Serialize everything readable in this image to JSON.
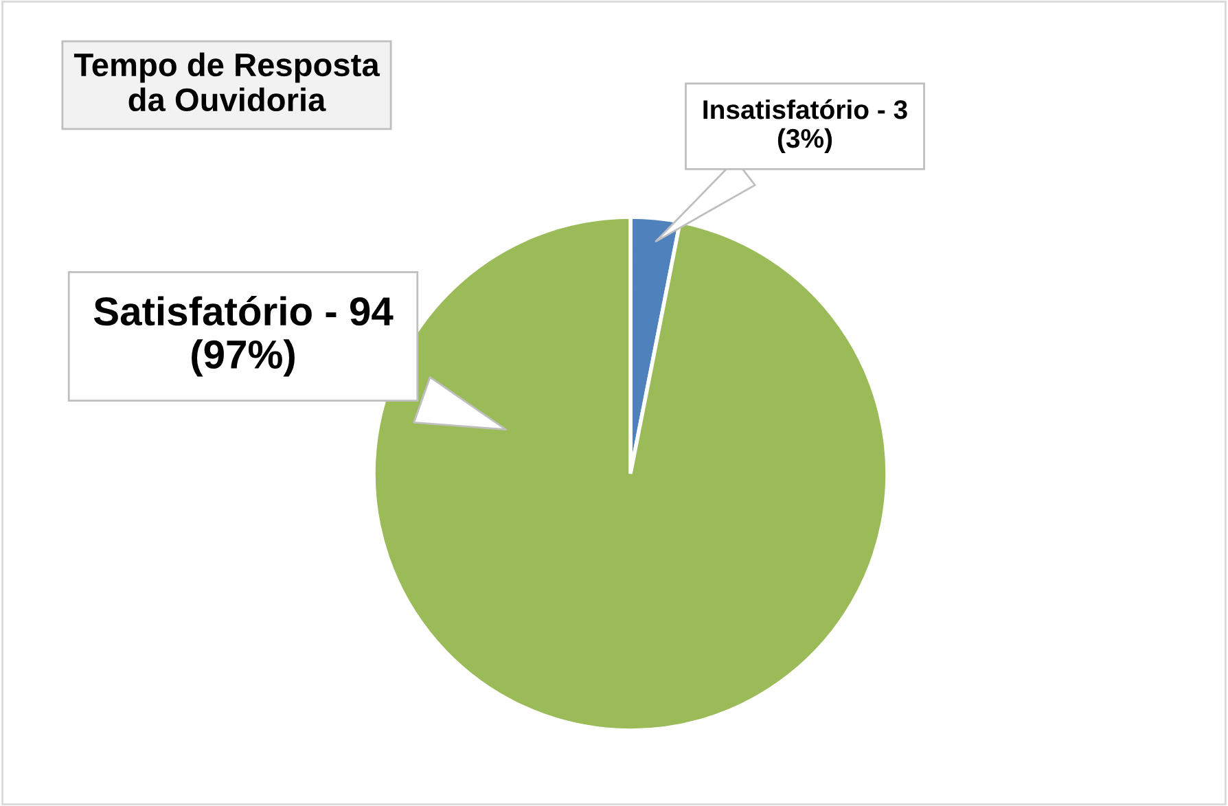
{
  "chart_data": {
    "type": "pie",
    "title": "Tempo de Resposta\nda Ouvidoria",
    "categories": [
      "Insatisfatório",
      "Satisfatório"
    ],
    "values": [
      3,
      94
    ],
    "value_labels": [
      "3\n(3%)",
      "94\n(97%)"
    ],
    "colors": [
      "#4f81bd",
      "#9bbb59"
    ]
  }
}
